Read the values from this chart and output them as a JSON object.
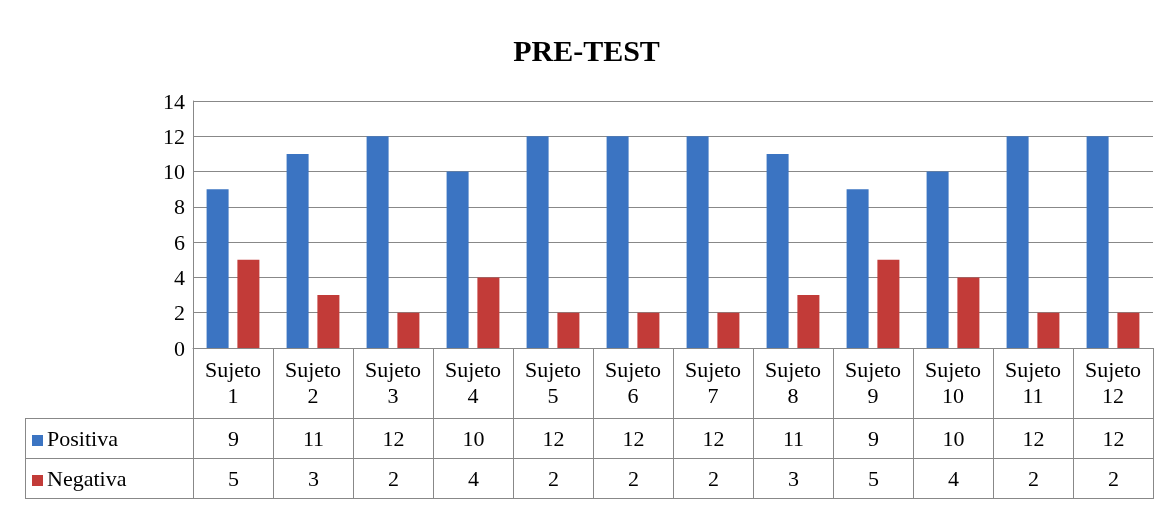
{
  "chart_data": {
    "type": "bar",
    "title": "PRE-TEST",
    "categories": [
      "Sujeto 1",
      "Sujeto 2",
      "Sujeto 3",
      "Sujeto 4",
      "Sujeto 5",
      "Sujeto 6",
      "Sujeto 7",
      "Sujeto 8",
      "Sujeto 9",
      "Sujeto 10",
      "Sujeto 11",
      "Sujeto 12"
    ],
    "series": [
      {
        "name": "Positiva",
        "color": "#3b74c2",
        "values": [
          9,
          11,
          12,
          10,
          12,
          12,
          12,
          11,
          9,
          10,
          12,
          12
        ]
      },
      {
        "name": "Negativa",
        "color": "#c23b38",
        "values": [
          5,
          3,
          2,
          4,
          2,
          2,
          2,
          3,
          5,
          4,
          2,
          2
        ]
      }
    ],
    "ylim": [
      0,
      14
    ],
    "yticks": [
      0,
      2,
      4,
      6,
      8,
      10,
      12,
      14
    ],
    "grid": "y",
    "legend": "bottom left",
    "data_labels": true
  }
}
